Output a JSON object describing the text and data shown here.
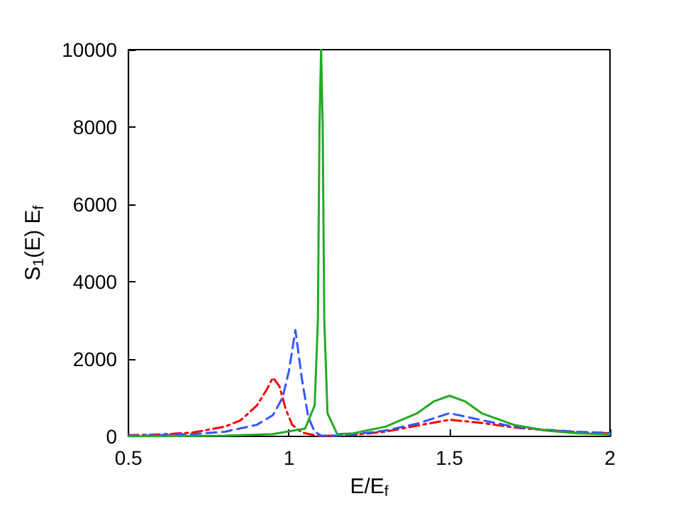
{
  "chart_data": {
    "type": "line",
    "xlabel": "E/E$_{f}$",
    "ylabel": "S$_{1}$(E) E$_{f}$",
    "xlim": [
      0.5,
      2
    ],
    "xticks": [
      0.5,
      1,
      1.5,
      2
    ],
    "ylim": [
      0,
      10000
    ],
    "yticks": [
      0,
      2000,
      4000,
      6000,
      8000,
      10000
    ],
    "grid": false,
    "marker": "none",
    "series": [
      {
        "color": "#ff0000",
        "line_style": "dashdot",
        "x": [
          0.5,
          0.6,
          0.7,
          0.8,
          0.85,
          0.9,
          0.93,
          0.95,
          0.97,
          0.99,
          1.01,
          1.04,
          1.08,
          1.1,
          1.15,
          1.2,
          1.3,
          1.4,
          1.5,
          1.6,
          1.7,
          1.8,
          1.9,
          2.0
        ],
        "values": [
          30,
          50,
          100,
          250,
          420,
          800,
          1200,
          1520,
          1300,
          700,
          300,
          100,
          30,
          10,
          20,
          40,
          120,
          280,
          430,
          350,
          230,
          160,
          110,
          80
        ]
      },
      {
        "color": "#3355ff",
        "line_style": "dashed",
        "x": [
          0.5,
          0.6,
          0.7,
          0.8,
          0.9,
          0.95,
          0.98,
          1.0,
          1.02,
          1.04,
          1.06,
          1.08,
          1.1,
          1.15,
          1.2,
          1.3,
          1.4,
          1.5,
          1.6,
          1.7,
          1.8,
          1.9,
          2.0
        ],
        "values": [
          20,
          30,
          60,
          120,
          300,
          550,
          1000,
          1700,
          2750,
          1500,
          500,
          120,
          20,
          20,
          50,
          150,
          330,
          600,
          420,
          250,
          170,
          120,
          90
        ]
      },
      {
        "color": "#22aa22",
        "line_style": "solid",
        "x": [
          0.5,
          0.8,
          0.95,
          1.05,
          1.08,
          1.09,
          1.095,
          1.1,
          1.105,
          1.11,
          1.12,
          1.15,
          1.2,
          1.3,
          1.4,
          1.45,
          1.5,
          1.55,
          1.6,
          1.7,
          1.8,
          1.9,
          2.0
        ],
        "values": [
          0,
          20,
          60,
          200,
          800,
          3000,
          8000,
          10000,
          8000,
          3000,
          600,
          60,
          80,
          250,
          600,
          900,
          1050,
          900,
          600,
          300,
          150,
          80,
          50
        ]
      }
    ]
  }
}
